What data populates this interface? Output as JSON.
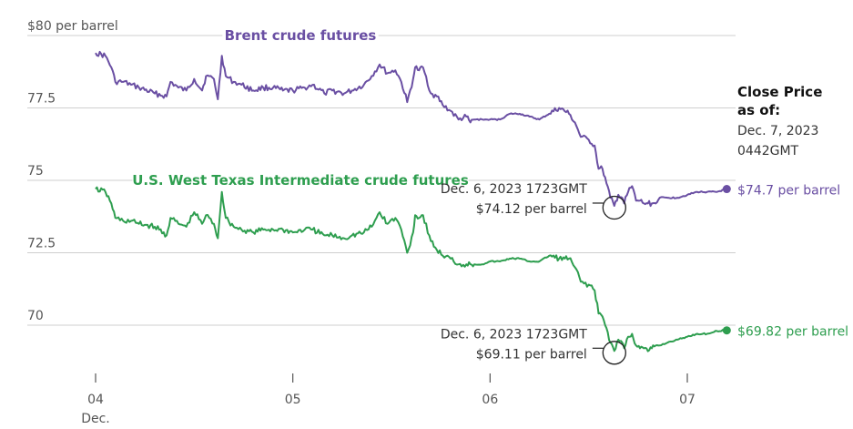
{
  "chart_data": {
    "type": "line",
    "ylabel": "per barrel",
    "y_ticks": [
      "$80 per barrel",
      "77.5",
      "75",
      "72.5",
      "70"
    ],
    "y_tick_values": [
      80,
      77.5,
      75,
      72.5,
      70
    ],
    "ylim": [
      68.5,
      80.5
    ],
    "x_ticks": [
      {
        "label": "04",
        "sublabel": "Dec.",
        "value": 0
      },
      {
        "label": "05",
        "sublabel": "",
        "value": 1
      },
      {
        "label": "06",
        "sublabel": "",
        "value": 2
      },
      {
        "label": "07",
        "sublabel": "",
        "value": 3
      }
    ],
    "xlim": [
      -0.08,
      3.3
    ],
    "grid": true,
    "series": [
      {
        "name": "Brent crude futures",
        "color": "#6a4fa3",
        "x": [
          0.0,
          0.05,
          0.08,
          0.1,
          0.14,
          0.18,
          0.22,
          0.3,
          0.36,
          0.38,
          0.42,
          0.46,
          0.5,
          0.54,
          0.56,
          0.6,
          0.62,
          0.64,
          0.66,
          0.7,
          0.74,
          0.8,
          0.85,
          0.9,
          0.95,
          1.0,
          1.06,
          1.1,
          1.16,
          1.2,
          1.26,
          1.3,
          1.36,
          1.4,
          1.44,
          1.48,
          1.52,
          1.55,
          1.58,
          1.61,
          1.62,
          1.64,
          1.66,
          1.7,
          1.73,
          1.76,
          1.8,
          1.84,
          1.88,
          1.9,
          1.92,
          1.96,
          2.0,
          2.05,
          2.1,
          2.15,
          2.2,
          2.25,
          2.3,
          2.35,
          2.4,
          2.43,
          2.46,
          2.5,
          2.53,
          2.55,
          2.57,
          2.59,
          2.61,
          2.63,
          2.65,
          2.67,
          2.68,
          2.7,
          2.72,
          2.74,
          2.76,
          2.78,
          2.8,
          2.82,
          2.84,
          2.86,
          2.9,
          2.95,
          3.0,
          3.05,
          3.1,
          3.15,
          3.2
        ],
        "values": [
          79.4,
          79.3,
          78.9,
          78.4,
          78.4,
          78.3,
          78.2,
          78.0,
          77.9,
          78.4,
          78.2,
          78.1,
          78.5,
          78.1,
          78.6,
          78.5,
          77.8,
          79.3,
          78.6,
          78.4,
          78.3,
          78.1,
          78.2,
          78.2,
          78.1,
          78.1,
          78.2,
          78.3,
          78.0,
          78.1,
          78.0,
          78.1,
          78.3,
          78.6,
          79.0,
          78.7,
          78.8,
          78.4,
          77.7,
          78.5,
          78.9,
          78.8,
          78.9,
          78.0,
          77.9,
          77.6,
          77.4,
          77.1,
          77.2,
          77.0,
          77.1,
          77.1,
          77.1,
          77.1,
          77.3,
          77.3,
          77.2,
          77.1,
          77.3,
          77.5,
          77.3,
          77.0,
          76.5,
          76.4,
          76.2,
          75.4,
          75.4,
          74.9,
          74.4,
          74.12,
          74.5,
          74.4,
          74.2,
          74.6,
          74.8,
          74.3,
          74.3,
          74.2,
          74.2,
          74.2,
          74.2,
          74.4,
          74.4,
          74.4,
          74.5,
          74.6,
          74.6,
          74.6,
          74.7
        ]
      },
      {
        "name": "U.S. West Texas Intermediate crude futures",
        "color": "#2e9e4f",
        "x": [
          0.0,
          0.05,
          0.08,
          0.1,
          0.14,
          0.18,
          0.22,
          0.3,
          0.36,
          0.38,
          0.42,
          0.46,
          0.5,
          0.54,
          0.56,
          0.6,
          0.62,
          0.64,
          0.66,
          0.7,
          0.74,
          0.8,
          0.85,
          0.9,
          0.95,
          1.0,
          1.06,
          1.1,
          1.16,
          1.2,
          1.26,
          1.3,
          1.36,
          1.4,
          1.44,
          1.48,
          1.52,
          1.55,
          1.58,
          1.61,
          1.62,
          1.64,
          1.66,
          1.7,
          1.73,
          1.76,
          1.8,
          1.84,
          1.88,
          1.9,
          1.92,
          1.96,
          2.0,
          2.05,
          2.1,
          2.15,
          2.2,
          2.25,
          2.3,
          2.35,
          2.4,
          2.43,
          2.46,
          2.5,
          2.53,
          2.55,
          2.57,
          2.59,
          2.61,
          2.63,
          2.65,
          2.67,
          2.68,
          2.7,
          2.72,
          2.74,
          2.76,
          2.78,
          2.8,
          2.82,
          2.84,
          2.86,
          2.9,
          2.95,
          3.0,
          3.05,
          3.1,
          3.15,
          3.2
        ],
        "values": [
          74.7,
          74.6,
          74.2,
          73.7,
          73.6,
          73.6,
          73.5,
          73.4,
          73.1,
          73.7,
          73.5,
          73.4,
          73.9,
          73.5,
          73.8,
          73.5,
          73.0,
          74.6,
          73.7,
          73.4,
          73.3,
          73.2,
          73.3,
          73.3,
          73.3,
          73.2,
          73.3,
          73.3,
          73.1,
          73.1,
          73.0,
          73.1,
          73.2,
          73.4,
          73.9,
          73.5,
          73.7,
          73.3,
          72.5,
          73.2,
          73.8,
          73.7,
          73.8,
          72.9,
          72.6,
          72.4,
          72.3,
          72.1,
          72.1,
          72.1,
          72.1,
          72.1,
          72.2,
          72.2,
          72.3,
          72.3,
          72.2,
          72.2,
          72.4,
          72.3,
          72.3,
          72.0,
          71.5,
          71.4,
          71.2,
          70.4,
          70.3,
          69.9,
          69.4,
          69.11,
          69.5,
          69.4,
          69.2,
          69.6,
          69.7,
          69.3,
          69.2,
          69.2,
          69.1,
          69.2,
          69.3,
          69.3,
          69.4,
          69.5,
          69.6,
          69.7,
          69.7,
          69.8,
          69.82
        ]
      }
    ],
    "annotations": [
      {
        "series": 0,
        "x": 2.63,
        "y": 74.12,
        "line1": "Dec. 6, 2023 1723GMT",
        "line2": "$74.12 per barrel"
      },
      {
        "series": 1,
        "x": 2.63,
        "y": 69.11,
        "line1": "Dec. 6, 2023 1723GMT",
        "line2": "$69.11 per barrel"
      }
    ],
    "end_labels": [
      {
        "series": 0,
        "text": "$74.7 per barrel"
      },
      {
        "series": 1,
        "text": "$69.82 per barrel"
      }
    ],
    "close_price": {
      "title_line1": "Close Price",
      "title_line2": "as of:",
      "date": "Dec. 7, 2023",
      "time": "0442GMT"
    }
  }
}
